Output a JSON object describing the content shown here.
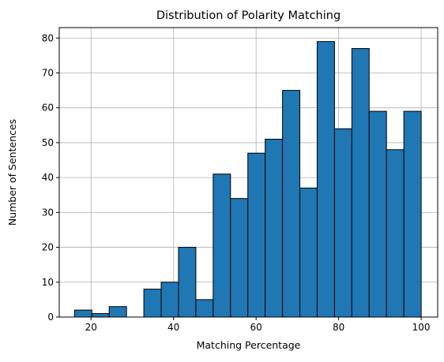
{
  "chart_data": {
    "type": "bar",
    "title": "Distribution of Polarity Matching",
    "xlabel": "Matching Percentage",
    "ylabel": "Number of Sentences",
    "bin_edges": [
      16.0,
      20.2,
      24.4,
      28.6,
      32.8,
      37.0,
      41.2,
      45.4,
      49.6,
      53.8,
      58.0,
      62.2,
      66.4,
      70.6,
      74.8,
      79.0,
      83.2,
      87.4,
      91.6,
      95.8,
      100.0
    ],
    "values": [
      2,
      1,
      3,
      0,
      8,
      10,
      20,
      5,
      41,
      34,
      47,
      51,
      65,
      37,
      79,
      54,
      77,
      59,
      48,
      59
    ],
    "xlim": [
      12.3,
      104.0
    ],
    "ylim": [
      0,
      83
    ],
    "xticks": [
      20,
      40,
      60,
      80,
      100
    ],
    "yticks": [
      0,
      10,
      20,
      30,
      40,
      50,
      60,
      70,
      80
    ],
    "grid": true,
    "bar_color": "#1f77b4",
    "edge_color": "#000000"
  }
}
